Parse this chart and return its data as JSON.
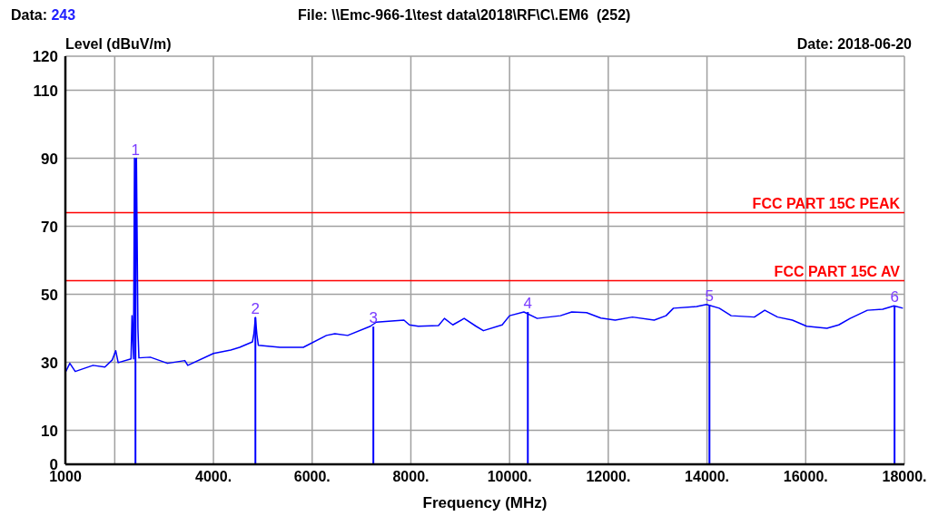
{
  "chart_data": {
    "type": "line",
    "xlabel": "Frequency (MHz)",
    "ylabel": "Level (dBuV/m)",
    "annotations": [
      "Data: 243",
      "File: \\\\Emc-966-1\\test data\\2018\\RF\\C\\.EM6  (252)",
      "Date: 2018-06-20",
      {
        "text": "1",
        "x": 2420,
        "y": 90
      },
      {
        "text": "2",
        "x": 4850,
        "y": 43.2
      },
      {
        "text": "3",
        "x": 7240,
        "y": 40.5
      },
      {
        "text": "4",
        "x": 10370,
        "y": 44.8
      },
      {
        "text": "5",
        "x": 14050,
        "y": 46.9
      },
      {
        "text": "6",
        "x": 17800,
        "y": 46.6
      }
    ],
    "series": [
      {
        "color": "#0000ff",
        "x": [
          1000,
          1090,
          1200,
          1560,
          1800,
          1950,
          2020,
          2070,
          2330,
          2350,
          2380,
          2400,
          2420,
          2440,
          2460,
          2470,
          2490,
          2720,
          3070,
          3420,
          3480,
          4000,
          4350,
          4530,
          4790,
          4820,
          4850,
          4880,
          4910,
          5350,
          5820,
          6290,
          6460,
          6720,
          7180,
          7300,
          7860,
          7970,
          8150,
          8560,
          8680,
          8850,
          9080,
          9320,
          9470,
          9850,
          10000,
          10290,
          10560,
          11030,
          11260,
          11560,
          11850,
          12140,
          12490,
          12930,
          13170,
          13320,
          13790,
          13990,
          14250,
          14490,
          14960,
          15170,
          15430,
          15730,
          16020,
          16430,
          16670,
          16900,
          17250,
          17560,
          17790,
          17970
        ],
        "values": [
          27.0,
          29.7,
          27.3,
          29.1,
          28.6,
          30.7,
          33.4,
          29.9,
          31.0,
          43.7,
          31.0,
          90,
          31.0,
          90,
          56.8,
          40,
          31.3,
          31.5,
          29.7,
          30.5,
          29.1,
          32.6,
          33.6,
          34.4,
          36.0,
          38.4,
          43.2,
          38.2,
          35.0,
          34.4,
          34.4,
          37.9,
          38.4,
          37.9,
          40.6,
          41.8,
          42.4,
          41.0,
          40.6,
          40.8,
          42.9,
          41.0,
          42.9,
          40.6,
          39.3,
          41.0,
          43.7,
          44.8,
          42.9,
          43.7,
          44.8,
          44.6,
          43.0,
          42.4,
          43.3,
          42.4,
          43.7,
          45.9,
          46.4,
          47.0,
          45.9,
          43.7,
          43.3,
          45.3,
          43.3,
          42.4,
          40.6,
          40.0,
          41.0,
          42.9,
          45.3,
          45.6,
          46.6,
          45.9
        ]
      }
    ],
    "xlim": [
      1000,
      18000
    ],
    "xticks": [
      {
        "value": 1000,
        "label": "1000"
      },
      {
        "value": 2000,
        "label": null
      },
      {
        "value": 4000,
        "label": "4000."
      },
      {
        "value": 6000,
        "label": "6000."
      },
      {
        "value": 8000,
        "label": "8000."
      },
      {
        "value": 10000,
        "label": "10000."
      },
      {
        "value": 12000,
        "label": "12000."
      },
      {
        "value": 14000,
        "label": "14000."
      },
      {
        "value": 16000,
        "label": "16000."
      },
      {
        "value": 18000,
        "label": "18000."
      }
    ],
    "ylim": [
      0,
      120
    ],
    "yticks": [
      0,
      10,
      30,
      50,
      70,
      90,
      110,
      120
    ],
    "ref_lines": [
      {
        "axis": "y",
        "value": 74,
        "label": "FCC PART 15C PEAK",
        "color": "#ff0000"
      },
      {
        "axis": "y",
        "value": 54,
        "label": "FCC PART 15C  AV",
        "color": "#ff0000"
      }
    ],
    "grid": true,
    "marker": "none",
    "line_style": "solid"
  }
}
